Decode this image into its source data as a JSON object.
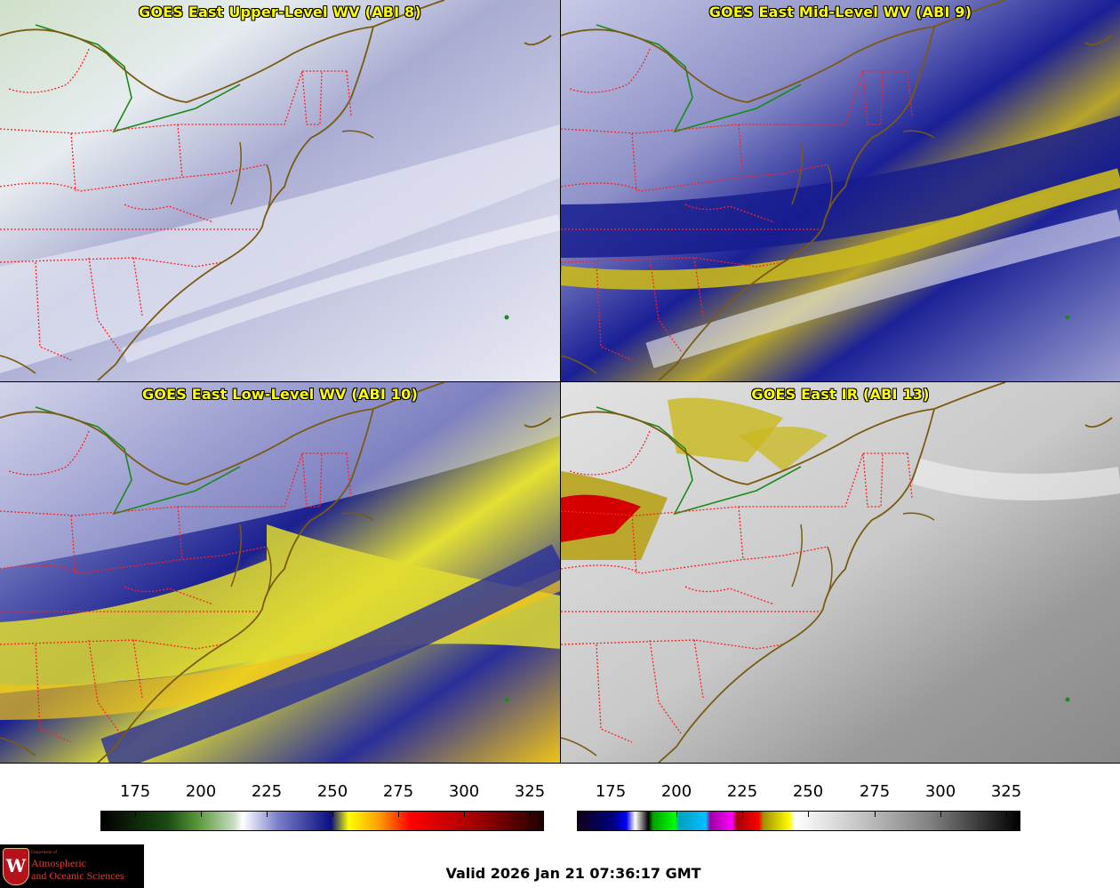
{
  "panels": [
    {
      "title": "GOES East Upper-Level WV (ABI 8)"
    },
    {
      "title": "GOES East Mid-Level WV (ABI 9)"
    },
    {
      "title": "GOES East Low-Level WV (ABI 10)"
    },
    {
      "title": "GOES East IR (ABI 13)"
    }
  ],
  "colorbars": [
    {
      "name": "water-vapor",
      "ticks": [
        "175",
        "200",
        "225",
        "250",
        "275",
        "300",
        "325"
      ]
    },
    {
      "name": "infrared",
      "ticks": [
        "175",
        "200",
        "225",
        "250",
        "275",
        "300",
        "325"
      ]
    }
  ],
  "logo": {
    "seal_letter": "W",
    "department": "Department of",
    "line1": "Atmospheric",
    "line2": "and Oceanic Sciences"
  },
  "valid_time": "Valid 2026 Jan 21 07:36:17 GMT",
  "colors": {
    "state_borders": "#ff2020",
    "coastline": "#7a5a10",
    "great_lakes_border": "#1a8a1a"
  }
}
